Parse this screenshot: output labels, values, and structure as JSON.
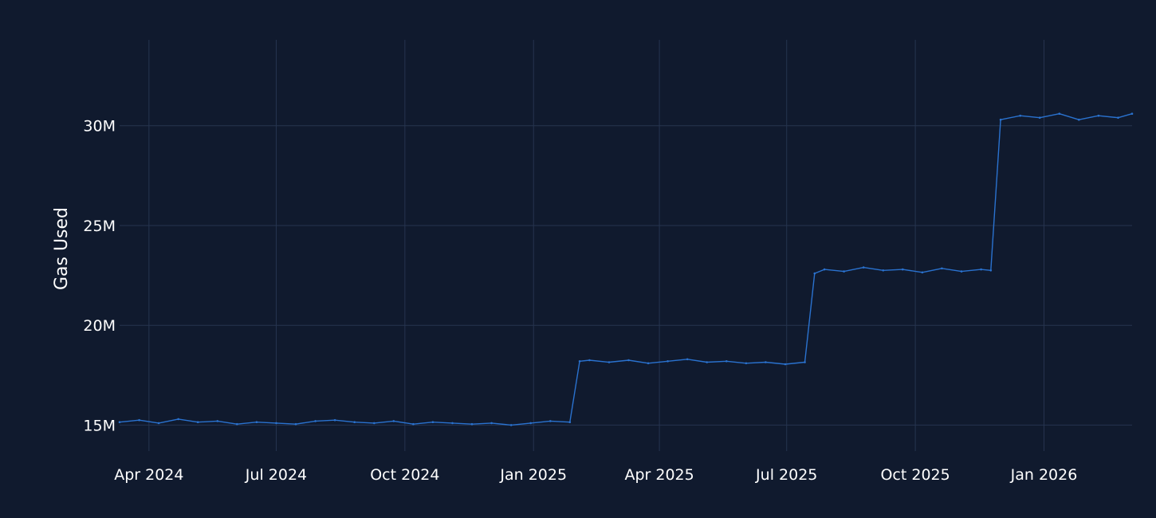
{
  "chart_data": {
    "type": "line",
    "title": "",
    "xlabel": "",
    "ylabel": "Gas Used",
    "background_color": "#101a2e",
    "grid_color": "#26344f",
    "text_color": "#ffffff",
    "grid": true,
    "x_ticks": [
      {
        "date": "2024-04-01",
        "label": "Apr 2024"
      },
      {
        "date": "2024-07-01",
        "label": "Jul 2024"
      },
      {
        "date": "2024-10-01",
        "label": "Oct 2024"
      },
      {
        "date": "2025-01-01",
        "label": "Jan 2025"
      },
      {
        "date": "2025-04-01",
        "label": "Apr 2025"
      },
      {
        "date": "2025-07-01",
        "label": "Jul 2025"
      },
      {
        "date": "2025-10-01",
        "label": "Oct 2025"
      },
      {
        "date": "2026-01-01",
        "label": "Jan 2026"
      }
    ],
    "y_ticks": [
      {
        "value": 15000000,
        "label": "15M"
      },
      {
        "value": 20000000,
        "label": "20M"
      },
      {
        "value": 25000000,
        "label": "25M"
      },
      {
        "value": 30000000,
        "label": "30M"
      }
    ],
    "xlim": [
      "2024-03-11",
      "2026-03-05"
    ],
    "ylim": [
      13700000,
      34300000
    ],
    "series": [
      {
        "color": "#2a72cf",
        "x": [
          "2024-03-11",
          "2024-03-25",
          "2024-04-08",
          "2024-04-22",
          "2024-05-06",
          "2024-05-20",
          "2024-06-03",
          "2024-06-17",
          "2024-07-01",
          "2024-07-15",
          "2024-07-29",
          "2024-08-12",
          "2024-08-26",
          "2024-09-09",
          "2024-09-23",
          "2024-10-07",
          "2024-10-21",
          "2024-11-04",
          "2024-11-18",
          "2024-12-02",
          "2024-12-16",
          "2024-12-30",
          "2025-01-13",
          "2025-01-27",
          "2025-02-03",
          "2025-02-10",
          "2025-02-24",
          "2025-03-10",
          "2025-03-24",
          "2025-04-07",
          "2025-04-21",
          "2025-05-05",
          "2025-05-19",
          "2025-06-02",
          "2025-06-16",
          "2025-06-30",
          "2025-07-14",
          "2025-07-21",
          "2025-07-28",
          "2025-08-11",
          "2025-08-25",
          "2025-09-08",
          "2025-09-22",
          "2025-10-06",
          "2025-10-20",
          "2025-11-03",
          "2025-11-17",
          "2025-11-24",
          "2025-12-01",
          "2025-12-15",
          "2025-12-29",
          "2026-01-12",
          "2026-01-26",
          "2026-02-09",
          "2026-02-23",
          "2026-03-05"
        ],
        "y": [
          15150000,
          15250000,
          15100000,
          15300000,
          15150000,
          15200000,
          15050000,
          15150000,
          15100000,
          15050000,
          15200000,
          15250000,
          15150000,
          15100000,
          15200000,
          15050000,
          15150000,
          15100000,
          15050000,
          15100000,
          15000000,
          15100000,
          15200000,
          15150000,
          18200000,
          18250000,
          18150000,
          18250000,
          18100000,
          18200000,
          18300000,
          18150000,
          18200000,
          18100000,
          18150000,
          18050000,
          18150000,
          22600000,
          22800000,
          22700000,
          22900000,
          22750000,
          22800000,
          22650000,
          22850000,
          22700000,
          22800000,
          22750000,
          30300000,
          30500000,
          30400000,
          30600000,
          30300000,
          30500000,
          30400000,
          30600000
        ]
      }
    ]
  }
}
